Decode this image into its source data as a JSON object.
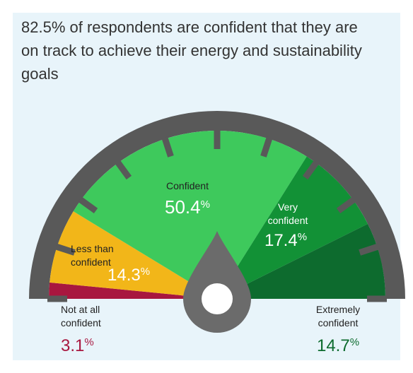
{
  "headline": "82.5% of respondents are confident that they are on track to achieve their energy and sustainability goals",
  "colors": {
    "background": "#e8f4fa",
    "rim": "#595959",
    "needle": "#6b6b6b",
    "hub": "#ffffff"
  },
  "chart_data": {
    "type": "pie",
    "subtype": "half-donut gauge",
    "title": "82.5% of respondents are confident that they are on track to achieve their energy and sustainability goals",
    "unit": "%",
    "slices": [
      {
        "label": "Not at all confident",
        "value": 3.1,
        "value_text": "3.1",
        "color": "#a8173f"
      },
      {
        "label": "Less than confident",
        "value": 14.3,
        "value_text": "14.3",
        "color": "#f2b619"
      },
      {
        "label": "Confident",
        "value": 50.4,
        "value_text": "50.4",
        "color": "#3ec95c"
      },
      {
        "label": "Very confident",
        "value": 17.4,
        "value_text": "17.4",
        "color": "#129136"
      },
      {
        "label": "Extremely confident",
        "value": 14.7,
        "value_text": "14.7",
        "color": "#0d6b2e"
      }
    ]
  }
}
